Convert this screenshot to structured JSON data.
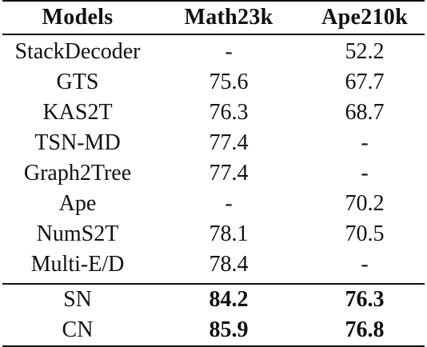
{
  "table": {
    "headers": [
      "Models",
      "Math23k",
      "Ape210k"
    ],
    "rows": [
      {
        "model": "StackDecoder",
        "math23k": "-",
        "ape210k": "52.2"
      },
      {
        "model": "GTS",
        "math23k": "75.6",
        "ape210k": "67.7"
      },
      {
        "model": "KAS2T",
        "math23k": "76.3",
        "ape210k": "68.7"
      },
      {
        "model": "TSN-MD",
        "math23k": "77.4",
        "ape210k": "-"
      },
      {
        "model": "Graph2Tree",
        "math23k": "77.4",
        "ape210k": "-"
      },
      {
        "model": "Ape",
        "math23k": "-",
        "ape210k": "70.2"
      },
      {
        "model": "NumS2T",
        "math23k": "78.1",
        "ape210k": "70.5"
      },
      {
        "model": "Multi-E/D",
        "math23k": "78.4",
        "ape210k": "-"
      },
      {
        "model": "SN",
        "math23k": "84.2",
        "ape210k": "76.3"
      },
      {
        "model": "CN",
        "math23k": "85.9",
        "ape210k": "76.8"
      }
    ]
  }
}
